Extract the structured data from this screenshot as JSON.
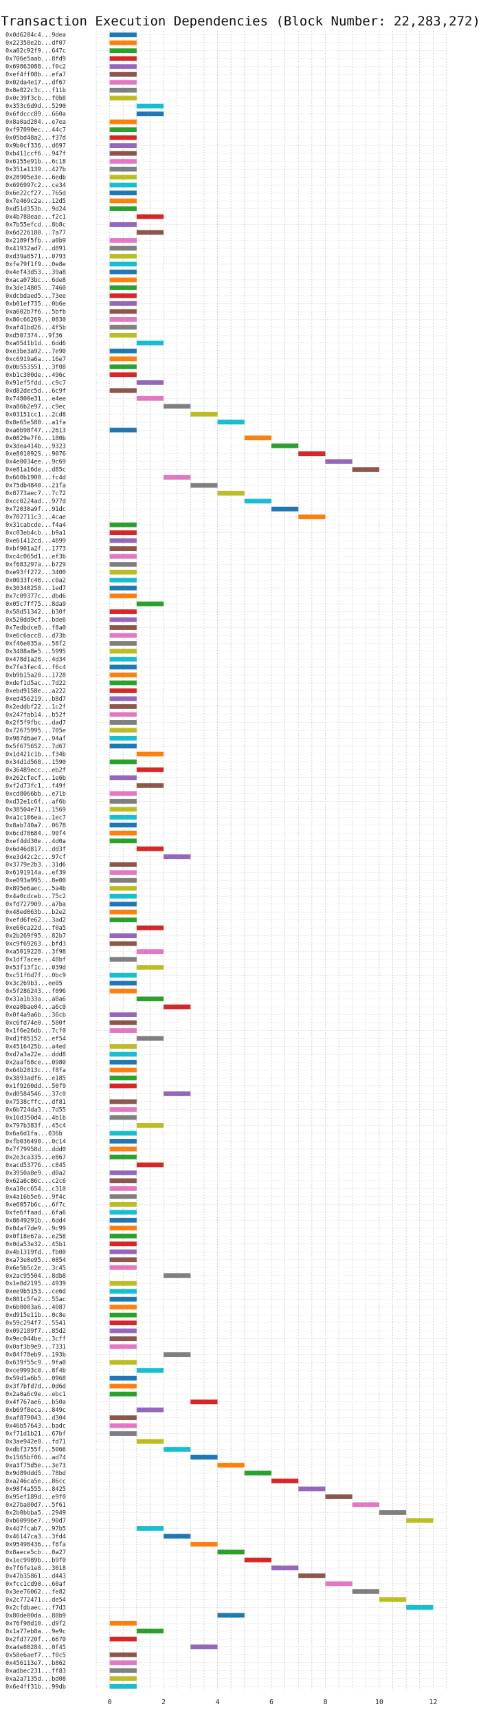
{
  "chart_data": {
    "type": "gantt",
    "title": "Transaction Execution Dependencies (Block Number: 22,283,272)",
    "xlabel": "",
    "ylabel": "",
    "xlim": [
      -0.5,
      12.5
    ],
    "x_ticks": [
      0,
      2,
      4,
      6,
      8,
      10,
      12
    ],
    "grid": true,
    "legend": "none",
    "palette": [
      "#1f77b4",
      "#ff7f0e",
      "#2ca02c",
      "#d62728",
      "#9467bd",
      "#8c564b",
      "#e377c2",
      "#7f7f7f",
      "#bcbd22",
      "#17becf"
    ],
    "transactions": [
      {
        "label": "0x0d6204c4...9dea",
        "start": 0
      },
      {
        "label": "0x22358e2b...df07",
        "start": 0
      },
      {
        "label": "0xa02c92f9...647c",
        "start": 0
      },
      {
        "label": "0x706e5aab...8fd9",
        "start": 0
      },
      {
        "label": "0x69863088...f0c2",
        "start": 0
      },
      {
        "label": "0xef4ff08b...efa7",
        "start": 0
      },
      {
        "label": "0x02da4e17...df67",
        "start": 0
      },
      {
        "label": "0x8e822c3c...f11b",
        "start": 0
      },
      {
        "label": "0x0c39f3cb...f0b8",
        "start": 0
      },
      {
        "label": "0x353c6d9d...5290",
        "start": 1
      },
      {
        "label": "0x6fdccc89...660a",
        "start": 1
      },
      {
        "label": "0x8a0ad284...e7ea",
        "start": 0
      },
      {
        "label": "0xf97090ec...44c7",
        "start": 0
      },
      {
        "label": "0x05bd48a2...f37d",
        "start": 0
      },
      {
        "label": "0x9b0cf336...d697",
        "start": 0
      },
      {
        "label": "0xb411ccf6...947f",
        "start": 0
      },
      {
        "label": "0x6155e91b...6c18",
        "start": 0
      },
      {
        "label": "0x351a1139...427b",
        "start": 0
      },
      {
        "label": "0x28905e3e...6edb",
        "start": 0
      },
      {
        "label": "0x696997c2...ce34",
        "start": 0
      },
      {
        "label": "0x6e22cf27...765d",
        "start": 0
      },
      {
        "label": "0x7e469c2a...12d5",
        "start": 0
      },
      {
        "label": "0xd51d353b...9d24",
        "start": 0
      },
      {
        "label": "0x4b788eae...f2c1",
        "start": 1
      },
      {
        "label": "0x7b55efcd...8b8c",
        "start": 0
      },
      {
        "label": "0x6d226180...7a77",
        "start": 1
      },
      {
        "label": "0x2189f5fb...a0b9",
        "start": 0
      },
      {
        "label": "0x41932ad7...d891",
        "start": 0
      },
      {
        "label": "0xd39a8571...0793",
        "start": 0
      },
      {
        "label": "0xfe79f1f9...0e8e",
        "start": 0
      },
      {
        "label": "0x4ef43d53...39a8",
        "start": 0
      },
      {
        "label": "0xaca073bc...6de8",
        "start": 0
      },
      {
        "label": "0x3de14805...7460",
        "start": 0
      },
      {
        "label": "0xdcbdaed5...73ee",
        "start": 0
      },
      {
        "label": "0xb01ef735...0b6e",
        "start": 0
      },
      {
        "label": "0xa602b7f6...5bfb",
        "start": 0
      },
      {
        "label": "0x80c66269...0830",
        "start": 0
      },
      {
        "label": "0xaf41bd26...4f5b",
        "start": 0
      },
      {
        "label": "0xd507374...9f36",
        "start": 0
      },
      {
        "label": "0xa0541b1d...6dd6",
        "start": 1
      },
      {
        "label": "0xe3be3a92...7e90",
        "start": 0
      },
      {
        "label": "0xc6919a6a...16e7",
        "start": 0
      },
      {
        "label": "0x0b553551...3f08",
        "start": 0
      },
      {
        "label": "0xb1c300de...496c",
        "start": 0
      },
      {
        "label": "0x91ef5fdd...c9c7",
        "start": 1
      },
      {
        "label": "0xd82dec5d...6c9f",
        "start": 0
      },
      {
        "label": "0x74800e31...e4ee",
        "start": 1
      },
      {
        "label": "0xa86b2e97...c9ec",
        "start": 2
      },
      {
        "label": "0x03151cc1...2cd8",
        "start": 3
      },
      {
        "label": "0x8e65e580...a1fa",
        "start": 4
      },
      {
        "label": "0xa6b98f47...2613",
        "start": 0
      },
      {
        "label": "0x0829e7f6...180b",
        "start": 5
      },
      {
        "label": "0x3dea414b...9323",
        "start": 6
      },
      {
        "label": "0xe801092S...9076",
        "start": 7
      },
      {
        "label": "0x4e0034ee...9c69",
        "start": 8
      },
      {
        "label": "0xe81a16de...d85c",
        "start": 9
      },
      {
        "label": "0x660b1900...fc4d",
        "start": 2
      },
      {
        "label": "0x75db4840...21fa",
        "start": 3
      },
      {
        "label": "0x8773aec7...7c72",
        "start": 4
      },
      {
        "label": "0xcc0224ad...977d",
        "start": 5
      },
      {
        "label": "0x72030a9f...91dc",
        "start": 6
      },
      {
        "label": "0x702711c3...4cae",
        "start": 7
      },
      {
        "label": "0x31cabcde...f4a4",
        "start": 0
      },
      {
        "label": "0xc03eb4cb...b9a1",
        "start": 0
      },
      {
        "label": "0xe61412cd...4699",
        "start": 0
      },
      {
        "label": "0xbf901a2f...1773",
        "start": 0
      },
      {
        "label": "0xc4c065d1...ef3b",
        "start": 0
      },
      {
        "label": "0xf683297a...b729",
        "start": 0
      },
      {
        "label": "0xe93ff272...3400",
        "start": 0
      },
      {
        "label": "0x0033fc48...c0a2",
        "start": 0
      },
      {
        "label": "0x30340258...1ed7",
        "start": 0
      },
      {
        "label": "0x7c09377c...dbd6",
        "start": 0
      },
      {
        "label": "0x05c7ff75...8da9",
        "start": 1
      },
      {
        "label": "0x58d51342...b30f",
        "start": 0
      },
      {
        "label": "0x520dd9cf...bde6",
        "start": 0
      },
      {
        "label": "0x7edbdce8...f8a0",
        "start": 0
      },
      {
        "label": "0xe6c6acc8...d73b",
        "start": 0
      },
      {
        "label": "0xf46e035a...58f2",
        "start": 0
      },
      {
        "label": "0x3488a8e5...5995",
        "start": 0
      },
      {
        "label": "0x478d1a28...4d34",
        "start": 0
      },
      {
        "label": "0x7fe3fec4...f6c4",
        "start": 0
      },
      {
        "label": "0xb9b15a20...1728",
        "start": 0
      },
      {
        "label": "0xdef1d5ac...7d22",
        "start": 0
      },
      {
        "label": "0xebd9158e...a222",
        "start": 0
      },
      {
        "label": "0xed456219...b8d7",
        "start": 0
      },
      {
        "label": "0x2eddbf22...1c2f",
        "start": 0
      },
      {
        "label": "0x247fab14...b52f",
        "start": 0
      },
      {
        "label": "0x2f5f9fbc...dad7",
        "start": 0
      },
      {
        "label": "0x72675995...705e",
        "start": 0
      },
      {
        "label": "0x987d6ae7...94af",
        "start": 0
      },
      {
        "label": "0x5f675652...7d67",
        "start": 0
      },
      {
        "label": "0x1d421c1b...f34b",
        "start": 1
      },
      {
        "label": "0x34d1d568...1590",
        "start": 0
      },
      {
        "label": "0x36489ecc...eb2f",
        "start": 1
      },
      {
        "label": "0x262cfecf...1e6b",
        "start": 0
      },
      {
        "label": "0xf2d73fc1...f49f",
        "start": 1
      },
      {
        "label": "0xcd8066bb...e71b",
        "start": 0
      },
      {
        "label": "0xd32e1c6f...af6b",
        "start": 0
      },
      {
        "label": "0x38504e71...1569",
        "start": 0
      },
      {
        "label": "0xa1c106ea...1ec7",
        "start": 0
      },
      {
        "label": "0x8ab740a7...0678",
        "start": 0
      },
      {
        "label": "0x6cd78684...90f4",
        "start": 0
      },
      {
        "label": "0xef4dd30e...4d0a",
        "start": 0
      },
      {
        "label": "0x6d46d817...dd3f",
        "start": 1
      },
      {
        "label": "0xe3d42c2c...97cf",
        "start": 2
      },
      {
        "label": "0x3779e2b3...31d6",
        "start": 0
      },
      {
        "label": "0x6191914a...ef39",
        "start": 0
      },
      {
        "label": "0xe093a995...8e00",
        "start": 0
      },
      {
        "label": "0x895e6aec...5a4b",
        "start": 0
      },
      {
        "label": "0x4a0cdceb...75c2",
        "start": 0
      },
      {
        "label": "0xfd727909...a7ba",
        "start": 0
      },
      {
        "label": "0x48ed063b...b2e2",
        "start": 0
      },
      {
        "label": "0xefd6fe62...3ad2",
        "start": 0
      },
      {
        "label": "0xe60ca22d...f0a5",
        "start": 1
      },
      {
        "label": "0x2b269f95...82b7",
        "start": 0
      },
      {
        "label": "0xc9f69263...bfd3",
        "start": 0
      },
      {
        "label": "0xa5019228...3f98",
        "start": 1
      },
      {
        "label": "0x1df7acee...48bf",
        "start": 0
      },
      {
        "label": "0x53f13f1c...039d",
        "start": 1
      },
      {
        "label": "0xc51f6d7f...0bc9",
        "start": 0
      },
      {
        "label": "0x3c269b3...ee05",
        "start": 0
      },
      {
        "label": "0x5f286243...f096",
        "start": 0
      },
      {
        "label": "0x31a1b33a...a0a6",
        "start": 1
      },
      {
        "label": "0xea0bae04...a6c0",
        "start": 2
      },
      {
        "label": "0x0f4a9a6b...36cb",
        "start": 0
      },
      {
        "label": "0xc6fd74e0...580f",
        "start": 0
      },
      {
        "label": "0x1f6e26db...7cf0",
        "start": 0
      },
      {
        "label": "0xd1f85152...ef54",
        "start": 1
      },
      {
        "label": "0x4516425b...a4ed",
        "start": 0
      },
      {
        "label": "0xd7a3a22e...ddd8",
        "start": 0
      },
      {
        "label": "0x2aaf68ce...0980",
        "start": 0
      },
      {
        "label": "0x64b2013c...f8fa",
        "start": 0
      },
      {
        "label": "0x3893adf6...e185",
        "start": 0
      },
      {
        "label": "0x1f9260dd...50f9",
        "start": 0
      },
      {
        "label": "0xd0584546...37c0",
        "start": 2
      },
      {
        "label": "0x7538cffc...df81",
        "start": 0
      },
      {
        "label": "0x6b724da3...7d55",
        "start": 0
      },
      {
        "label": "0x16d350d4...4b1b",
        "start": 0
      },
      {
        "label": "0x797b383f...45c4",
        "start": 1
      },
      {
        "label": "0x6a6d1fa...036b",
        "start": 0
      },
      {
        "label": "0xfb036490...0c14",
        "start": 0
      },
      {
        "label": "0x7f79958d...ddd0",
        "start": 0
      },
      {
        "label": "0x2e3ca335...e867",
        "start": 0
      },
      {
        "label": "0xacd53776...c845",
        "start": 1
      },
      {
        "label": "0x3950a8e9...d0a2",
        "start": 0
      },
      {
        "label": "0x62a6c86c...c2c6",
        "start": 0
      },
      {
        "label": "0xa10cc654...c310",
        "start": 0
      },
      {
        "label": "0x4a16b5e6...9f4c",
        "start": 0
      },
      {
        "label": "0xe6057b6c...6f7c",
        "start": 0
      },
      {
        "label": "0xfe6ffaad...6fa6",
        "start": 0
      },
      {
        "label": "0x8649291b...6dd4",
        "start": 0
      },
      {
        "label": "0x04af7de9...9c99",
        "start": 0
      },
      {
        "label": "0x0f18e67a...e258",
        "start": 0
      },
      {
        "label": "0x0da53e32...45b1",
        "start": 0
      },
      {
        "label": "0x4b1319fd...fb00",
        "start": 0
      },
      {
        "label": "0xa73e0e95...0854",
        "start": 0
      },
      {
        "label": "0x6e5b5c2e...3c45",
        "start": 0
      },
      {
        "label": "0x2ac95504...8db8",
        "start": 2
      },
      {
        "label": "0x1e8d2195...4939",
        "start": 0
      },
      {
        "label": "0xee9b5153...ce6d",
        "start": 0
      },
      {
        "label": "0x801c5fe2...55ac",
        "start": 0
      },
      {
        "label": "0x6b8003a6...4087",
        "start": 0
      },
      {
        "label": "0xd915e11b...0c8e",
        "start": 0
      },
      {
        "label": "0x59c294f7...5541",
        "start": 0
      },
      {
        "label": "0x092189f7...85d2",
        "start": 0
      },
      {
        "label": "0x9ec044be...3cff",
        "start": 0
      },
      {
        "label": "0x0af3b9e9...7331",
        "start": 0
      },
      {
        "label": "0x84f78eb9...193b",
        "start": 2
      },
      {
        "label": "0x639f55c9...9fa0",
        "start": 0
      },
      {
        "label": "0xce9993c0...8f4b",
        "start": 1
      },
      {
        "label": "0x59d1a6b5...0968",
        "start": 0
      },
      {
        "label": "0x3f7bfd7d...0d6d",
        "start": 0
      },
      {
        "label": "0x2a0a6c9e...ebc1",
        "start": 0
      },
      {
        "label": "0x4f767ae6...b50a",
        "start": 3
      },
      {
        "label": "0xb69f8eca...849c",
        "start": 1
      },
      {
        "label": "0xaf879043...d304",
        "start": 0
      },
      {
        "label": "0x46b57643...badc",
        "start": 0
      },
      {
        "label": "0xf71d1b21...67bf",
        "start": 0
      },
      {
        "label": "0x3ae942e0...fd71",
        "start": 1
      },
      {
        "label": "0xdbf3755f...5066",
        "start": 2
      },
      {
        "label": "0x1565bf06...ad74",
        "start": 3
      },
      {
        "label": "0xa3f75d5e...3e73",
        "start": 4
      },
      {
        "label": "0x9d89ddd5...78bd",
        "start": 5
      },
      {
        "label": "0xa246ca5e...86cc",
        "start": 6
      },
      {
        "label": "0x98f4a555...8425",
        "start": 7
      },
      {
        "label": "0x95ef189d...e9f0",
        "start": 8
      },
      {
        "label": "0x27ba80d7...5f61",
        "start": 9
      },
      {
        "label": "0x2b0bbba5...2949",
        "start": 10
      },
      {
        "label": "0xb60996e7...90d7",
        "start": 11
      },
      {
        "label": "0x4d7fcab7...97b5",
        "start": 1
      },
      {
        "label": "0x46147ca3...3fd4",
        "start": 2
      },
      {
        "label": "0x95498436...f8fa",
        "start": 3
      },
      {
        "label": "0x8aece5cb...0a27",
        "start": 4
      },
      {
        "label": "0x1ec9989b...b9f0",
        "start": 5
      },
      {
        "label": "0x7f6fe1e8...3018",
        "start": 6
      },
      {
        "label": "0x47b35861...d443",
        "start": 7
      },
      {
        "label": "0xfcc1cd90...60af",
        "start": 8
      },
      {
        "label": "0x3ee76062...fe82",
        "start": 9
      },
      {
        "label": "0x2c772471...de54",
        "start": 10
      },
      {
        "label": "0x2cfdbaec...f7d3",
        "start": 11
      },
      {
        "label": "0x80de00da...88b9",
        "start": 4
      },
      {
        "label": "0x76f98d10...d9f2",
        "start": 0
      },
      {
        "label": "0x1a77eb8a...9e9c",
        "start": 1
      },
      {
        "label": "0x2fd7720f...6670",
        "start": 0
      },
      {
        "label": "0xa4e80284...0f45",
        "start": 3
      },
      {
        "label": "0x58e6aef7...f0c5",
        "start": 0
      },
      {
        "label": "0x456113e7...b862",
        "start": 0
      },
      {
        "label": "0xadbec231...ff83",
        "start": 0
      },
      {
        "label": "0xa2a7135d...bd08",
        "start": 0
      },
      {
        "label": "0x6e4ff31b...99db",
        "start": 0
      }
    ]
  }
}
